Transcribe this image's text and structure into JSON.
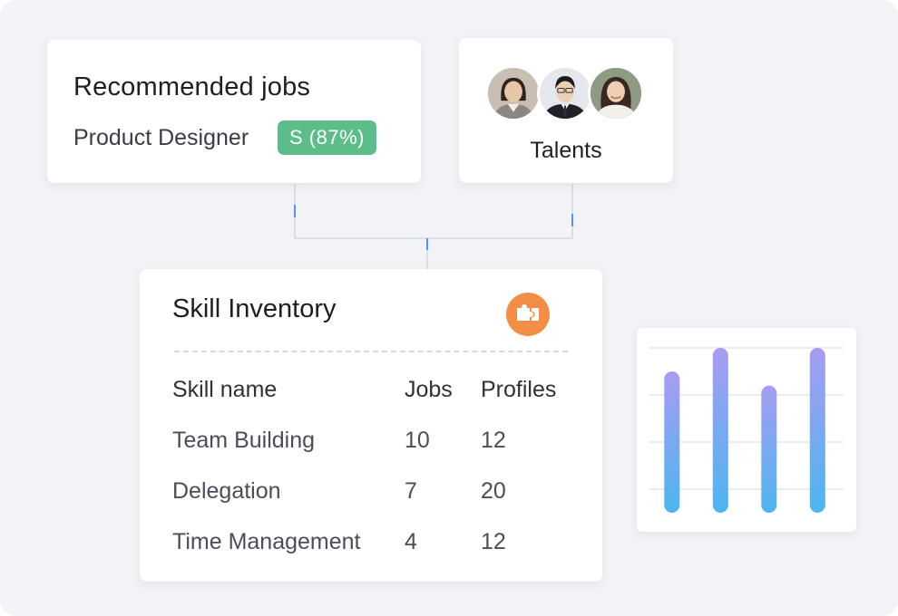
{
  "recommended": {
    "title": "Recommended jobs",
    "role": "Product Designer",
    "match_badge": "S (87%)",
    "badge_color": "#5cbd8b"
  },
  "talents": {
    "label": "Talents",
    "avatars": [
      "avatar-woman-1",
      "avatar-man",
      "avatar-woman-2"
    ]
  },
  "skills": {
    "title": "Skill Inventory",
    "icon": "puzzle-icon",
    "icon_color": "#f28e46",
    "columns": [
      "Skill name",
      "Jobs",
      "Profiles"
    ],
    "rows": [
      {
        "name": "Team Building",
        "jobs": "10",
        "profiles": "12"
      },
      {
        "name": "Delegation",
        "jobs": "7",
        "profiles": "20"
      },
      {
        "name": "Time Management",
        "jobs": "4",
        "profiles": "12"
      }
    ]
  },
  "chart_data": {
    "type": "bar",
    "categories": [
      "",
      "",
      "",
      ""
    ],
    "values": [
      3.0,
      3.5,
      2.7,
      3.5
    ],
    "ylim": [
      0,
      3.5
    ],
    "grid": true,
    "legend": "none",
    "bar_gradient": [
      "#a79cf3",
      "#4cb6ef"
    ]
  }
}
